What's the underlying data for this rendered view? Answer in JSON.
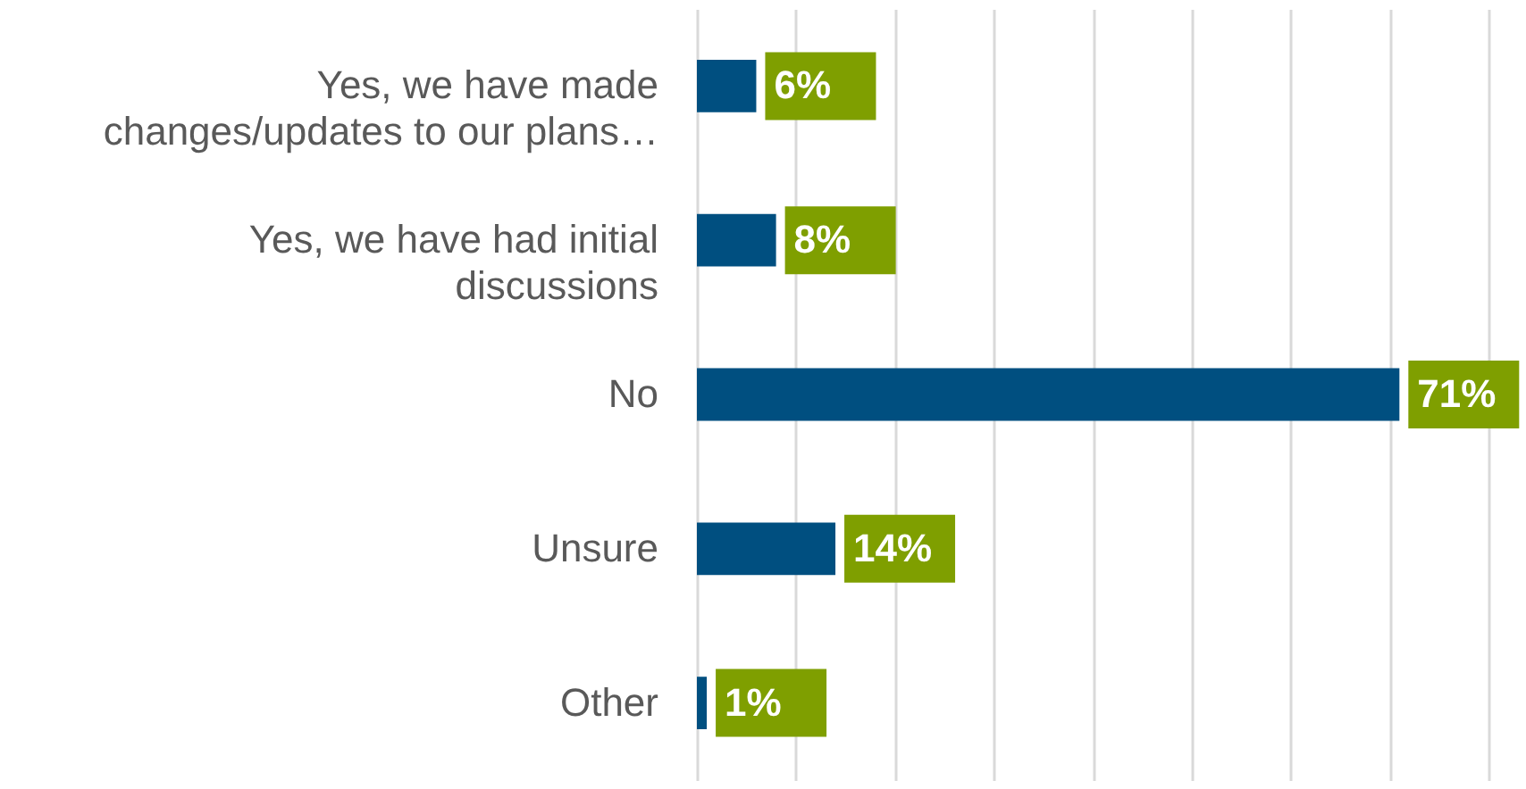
{
  "chart_data": {
    "type": "bar",
    "orientation": "horizontal",
    "categories": [
      "Yes, we have made changes/updates to our plans…",
      "Yes, we have had initial discussions",
      "No",
      "Unsure",
      "Other"
    ],
    "values": [
      6,
      8,
      71,
      14,
      1
    ],
    "value_labels": [
      "6%",
      "8%",
      "71%",
      "14%",
      "1%"
    ],
    "color": "#004f80",
    "xlim": [
      0,
      80
    ],
    "xticks": [
      {
        "value": 0,
        "label": null
      },
      {
        "value": 10,
        "label": null
      },
      {
        "value": 20,
        "label": null
      },
      {
        "value": 30,
        "label": null
      },
      {
        "value": 40,
        "label": null
      },
      {
        "value": 50,
        "label": null
      },
      {
        "value": 60,
        "label": null
      },
      {
        "value": 70,
        "label": null
      },
      {
        "value": 80,
        "label": null
      }
    ],
    "grid": "x",
    "tick_labels": "y"
  }
}
